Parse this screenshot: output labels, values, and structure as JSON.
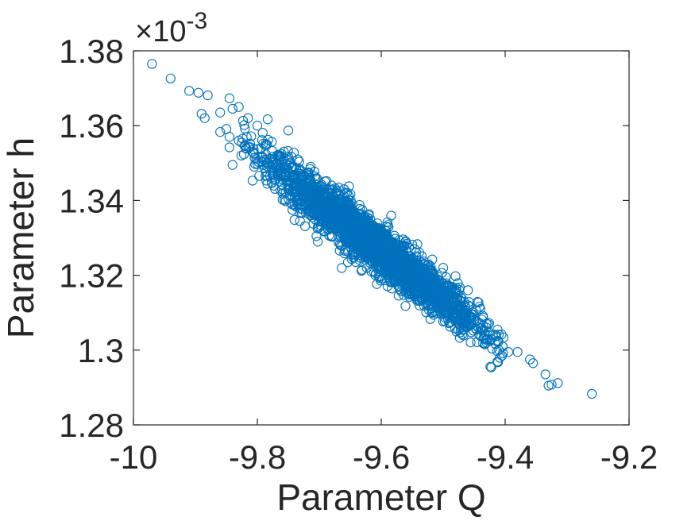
{
  "chart_data": {
    "type": "scatter",
    "title": "",
    "xlabel": "Parameter Q",
    "ylabel": "Parameter h",
    "xlim": [
      -10,
      -9.2
    ],
    "ylim": [
      1.28,
      1.38
    ],
    "y_exponent_label": "×10",
    "y_exponent": "-3",
    "x_ticks": [
      -10,
      -9.8,
      -9.6,
      -9.4,
      -9.2
    ],
    "x_tick_labels": [
      "-10",
      "-9.8",
      "-9.6",
      "-9.4",
      "-9.2"
    ],
    "y_ticks": [
      1.28,
      1.3,
      1.32,
      1.34,
      1.36,
      1.38
    ],
    "y_tick_labels": [
      "1.28",
      "1.3",
      "1.32",
      "1.34",
      "1.36",
      "1.38"
    ],
    "grid": false,
    "marker": "open-circle",
    "marker_color": "#0072BD",
    "axis_color": "#262626",
    "series": [
      {
        "points": [
          [
            -9.97,
            1.3765
          ],
          [
            -9.94,
            1.3726
          ],
          [
            -9.91,
            1.3693
          ],
          [
            -9.895,
            1.3688
          ],
          [
            -9.88,
            1.3681
          ],
          [
            -9.89,
            1.3632
          ],
          [
            -9.885,
            1.362
          ],
          [
            -9.86,
            1.3635
          ],
          [
            -9.845,
            1.3673
          ],
          [
            -9.84,
            1.3645
          ],
          [
            -9.83,
            1.365
          ],
          [
            -9.85,
            1.3591
          ],
          [
            -9.86,
            1.3583
          ],
          [
            -9.845,
            1.357
          ],
          [
            -9.82,
            1.3592
          ],
          [
            -9.815,
            1.362
          ],
          [
            -9.8,
            1.36
          ],
          [
            -9.83,
            1.356
          ],
          [
            -9.845,
            1.3542
          ],
          [
            -9.82,
            1.3548
          ],
          [
            -9.84,
            1.3495
          ],
          [
            -9.75,
            1.3587
          ],
          [
            -9.79,
            1.3495
          ],
          [
            -9.76,
            1.343
          ],
          [
            -9.74,
            1.3348
          ],
          [
            -9.68,
            1.344
          ],
          [
            -9.66,
            1.343
          ],
          [
            -9.62,
            1.336
          ],
          [
            -9.62,
            1.3255
          ],
          [
            -9.59,
            1.3342
          ],
          [
            -9.55,
            1.3282
          ],
          [
            -9.56,
            1.319
          ],
          [
            -9.52,
            1.3215
          ],
          [
            -9.51,
            1.3175
          ],
          [
            -9.5,
            1.322
          ],
          [
            -9.47,
            1.3138
          ],
          [
            -9.46,
            1.316
          ],
          [
            -9.46,
            1.312
          ],
          [
            -9.45,
            1.308
          ],
          [
            -9.44,
            1.311
          ],
          [
            -9.43,
            1.306
          ],
          [
            -9.42,
            1.304
          ],
          [
            -9.43,
            1.302
          ],
          [
            -9.41,
            1.3
          ],
          [
            -9.405,
            1.2985
          ],
          [
            -9.395,
            1.2995
          ],
          [
            -9.38,
            1.2995
          ],
          [
            -9.36,
            1.2975
          ],
          [
            -9.355,
            1.2965
          ],
          [
            -9.335,
            1.2935
          ],
          [
            -9.33,
            1.2905
          ],
          [
            -9.325,
            1.2908
          ],
          [
            -9.315,
            1.2912
          ],
          [
            -9.26,
            1.2883
          ]
        ]
      }
    ]
  }
}
